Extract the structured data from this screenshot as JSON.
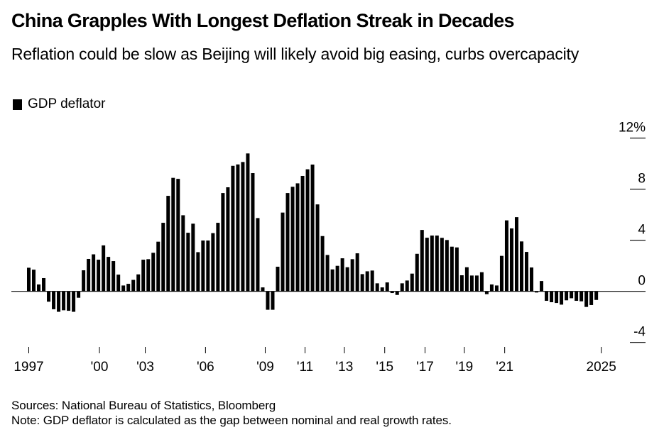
{
  "header": {
    "title": "China Grapples With Longest Deflation Streak in Decades",
    "subtitle": "Reflation could be slow as Beijing will likely avoid big easing, curbs overcapacity"
  },
  "legend": {
    "label": "GDP deflator",
    "color": "#000000"
  },
  "footer": {
    "sources": "Sources: National Bureau of Statistics, Bloomberg",
    "note": "Note: GDP deflator is calculated as the gap between nominal and real growth rates."
  },
  "chart_data": {
    "type": "bar",
    "title": "China Grapples With Longest Deflation Streak in Decades",
    "subtitle": "Reflation could be slow as Beijing will likely avoid big easing, curbs overcapacity",
    "xlabel": "",
    "ylabel": "",
    "frequency": "quarterly",
    "ylim": [
      -4,
      12
    ],
    "y_ticks": [
      {
        "value": 12,
        "label": "12%"
      },
      {
        "value": 8,
        "label": "8"
      },
      {
        "value": 4,
        "label": "4"
      },
      {
        "value": 0,
        "label": "0"
      },
      {
        "value": -4,
        "label": "-4"
      }
    ],
    "x_ticks": [
      {
        "index": 1,
        "label": "1997"
      },
      {
        "index": 15.2,
        "label": "'00"
      },
      {
        "index": 24.4,
        "label": "'03"
      },
      {
        "index": 36.5,
        "label": "'06"
      },
      {
        "index": 48.5,
        "label": "'09"
      },
      {
        "index": 56.5,
        "label": "'11"
      },
      {
        "index": 64.4,
        "label": "'13"
      },
      {
        "index": 72.5,
        "label": "'15"
      },
      {
        "index": 80.6,
        "label": "'17"
      },
      {
        "index": 88.5,
        "label": "'19"
      },
      {
        "index": 96.6,
        "label": "'21"
      },
      {
        "index": 116,
        "label": "2025"
      }
    ],
    "legend": "top-left",
    "grid": false,
    "series": [
      {
        "name": "GDP deflator",
        "color": "#000000",
        "values": [
          1.85,
          1.7,
          0.54,
          1.04,
          -0.81,
          -1.4,
          -1.6,
          -1.48,
          -1.52,
          -1.6,
          -0.5,
          1.65,
          2.54,
          2.9,
          2.48,
          3.6,
          2.7,
          2.37,
          1.31,
          0.46,
          0.59,
          0.9,
          1.33,
          2.48,
          2.52,
          3.02,
          3.89,
          5.37,
          7.48,
          8.89,
          8.81,
          5.96,
          4.59,
          5.3,
          3.07,
          3.98,
          3.98,
          4.56,
          5.37,
          7.7,
          8.15,
          9.83,
          9.94,
          10.13,
          10.8,
          9.26,
          5.74,
          0.31,
          -1.44,
          -1.44,
          1.93,
          6.17,
          7.7,
          8.19,
          8.46,
          9.04,
          9.56,
          9.93,
          6.81,
          4.33,
          2.85,
          1.72,
          2.0,
          2.59,
          1.89,
          2.52,
          2.98,
          1.35,
          1.57,
          1.63,
          0.63,
          0.31,
          0.7,
          -0.13,
          -0.28,
          0.63,
          0.85,
          1.39,
          2.94,
          4.81,
          4.2,
          4.37,
          4.37,
          4.19,
          4.02,
          3.5,
          3.44,
          1.26,
          1.89,
          1.24,
          1.24,
          1.5,
          -0.22,
          0.54,
          0.46,
          2.78,
          5.56,
          4.93,
          5.81,
          3.91,
          3.09,
          1.87,
          -0.09,
          0.81,
          -0.74,
          -0.85,
          -0.91,
          -1.04,
          -0.7,
          -0.54,
          -0.74,
          -0.78,
          -1.22,
          -1.07,
          -0.67
        ]
      }
    ]
  }
}
